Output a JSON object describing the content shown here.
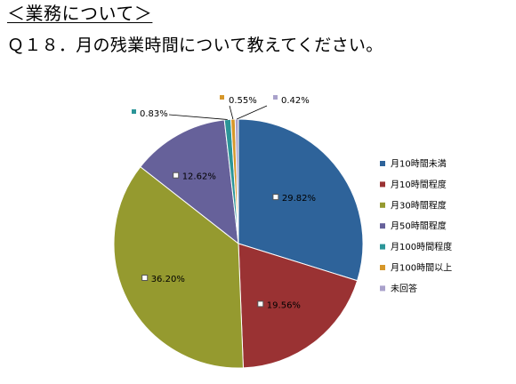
{
  "heading": "＜業務について＞",
  "question": "Ｑ１８．月の残業時間について教えてください。",
  "chart_data": {
    "type": "pie",
    "title": "",
    "categories": [
      "月10時間未満",
      "月10時間程度",
      "月30時間程度",
      "月50時間程度",
      "月100時間程度",
      "月100時間以上",
      "未回答"
    ],
    "values": [
      29.82,
      19.56,
      36.2,
      12.62,
      0.83,
      0.55,
      0.42
    ],
    "data_labels": [
      "29.82%",
      "19.56%",
      "36.20%",
      "12.62%",
      "0.83%",
      "0.55%",
      "0.42%"
    ],
    "colors": [
      "#2e639a",
      "#9a3233",
      "#959a2f",
      "#66619a",
      "#2b9598",
      "#d6972a",
      "#a9a1cb"
    ],
    "start": "12 o'clock",
    "direction": "clockwise",
    "legend_position": "right"
  }
}
